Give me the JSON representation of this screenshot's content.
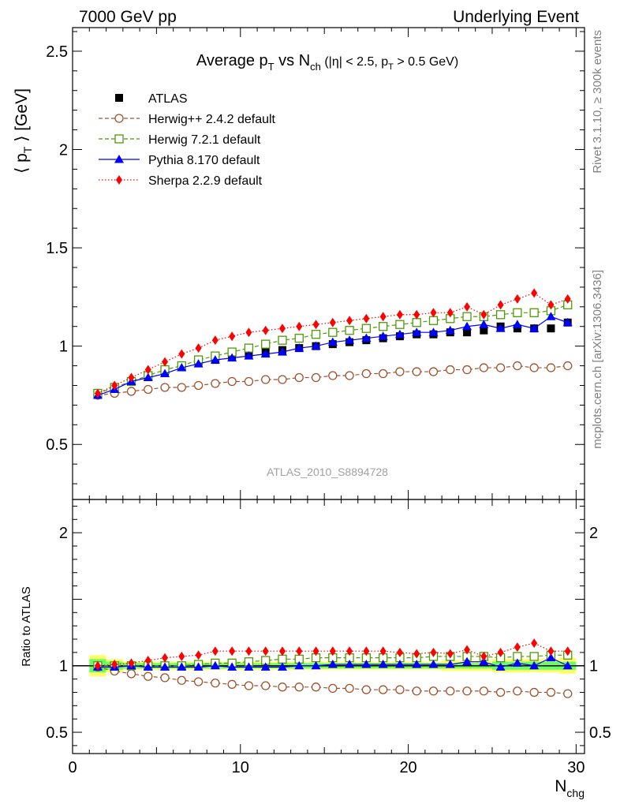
{
  "header": {
    "left": "7000 GeV pp",
    "right": "Underlying Event"
  },
  "side_labels": {
    "rivet": "Rivet 3.1.10, ≥ 300k events",
    "mcplots": "mcplots.cern.ch [arXiv:1306.3436]"
  },
  "chart_data": [
    {
      "type": "line",
      "title": "Average p_T vs N_ch (|η| < 2.5, p_T > 0.5 GeV)",
      "title_parts": {
        "a": "Average p",
        "a_sub": "T",
        "b": " vs N",
        "b_sub": "ch",
        "c": " (|η| < 2.5, p",
        "c_sub": "T",
        "d": " > 0.5 GeV)"
      },
      "watermark": "ATLAS_2010_S8894728",
      "ylabel": "⟨ p_T ⟩ [GeV]",
      "ylabel_parts": {
        "a": "⟨ p",
        "sub": "T",
        "b": " ⟩ [GeV]"
      },
      "xlim": [
        0,
        30.5
      ],
      "ylim": [
        0.22,
        2.62
      ],
      "yticks": [
        0.5,
        1,
        1.5,
        2,
        2.5
      ],
      "ytick_labels": [
        "0.5",
        "1",
        "1.5",
        "2",
        "2.5"
      ],
      "legend_position": "top-left",
      "x": [
        1.5,
        2.5,
        3.5,
        4.5,
        5.5,
        6.5,
        7.5,
        8.5,
        9.5,
        10.5,
        11.5,
        12.5,
        13.5,
        14.5,
        15.5,
        16.5,
        17.5,
        18.5,
        19.5,
        20.5,
        21.5,
        22.5,
        23.5,
        24.5,
        25.5,
        26.5,
        27.5,
        28.5,
        29.5
      ],
      "series": [
        {
          "name": "ATLAS",
          "color": "#000000",
          "marker": "square-filled",
          "line": "none",
          "values": [
            0.76,
            0.79,
            0.82,
            0.85,
            0.87,
            0.9,
            0.92,
            0.93,
            0.95,
            0.96,
            0.97,
            0.98,
            0.99,
            1.0,
            1.01,
            1.02,
            1.03,
            1.04,
            1.05,
            1.06,
            1.06,
            1.07,
            1.07,
            1.08,
            1.1,
            1.09,
            1.09,
            1.09,
            1.12
          ]
        },
        {
          "name": "Herwig++ 2.4.2 default",
          "color": "#a0522d",
          "marker": "circle-open",
          "line": "dashed",
          "values": [
            0.75,
            0.76,
            0.77,
            0.78,
            0.79,
            0.79,
            0.8,
            0.81,
            0.82,
            0.82,
            0.83,
            0.83,
            0.84,
            0.84,
            0.85,
            0.85,
            0.86,
            0.86,
            0.87,
            0.87,
            0.87,
            0.88,
            0.88,
            0.89,
            0.89,
            0.9,
            0.89,
            0.89,
            0.9
          ]
        },
        {
          "name": "Herwig 7.2.1 default",
          "color": "#4e9a06",
          "marker": "square-open",
          "line": "dashed",
          "values": [
            0.76,
            0.79,
            0.82,
            0.85,
            0.88,
            0.9,
            0.93,
            0.95,
            0.97,
            0.99,
            1.01,
            1.03,
            1.04,
            1.06,
            1.07,
            1.08,
            1.09,
            1.1,
            1.11,
            1.12,
            1.13,
            1.14,
            1.15,
            1.15,
            1.16,
            1.17,
            1.17,
            1.18,
            1.21
          ]
        },
        {
          "name": "Pythia 8.170 default",
          "color": "#0000ff",
          "marker": "triangle-filled",
          "line": "solid",
          "values": [
            0.75,
            0.78,
            0.82,
            0.84,
            0.86,
            0.89,
            0.91,
            0.93,
            0.94,
            0.95,
            0.96,
            0.97,
            0.99,
            1.0,
            1.02,
            1.03,
            1.04,
            1.05,
            1.06,
            1.07,
            1.07,
            1.08,
            1.1,
            1.11,
            1.09,
            1.11,
            1.09,
            1.15,
            1.12
          ]
        },
        {
          "name": "Sherpa 2.2.9 default",
          "color": "#ff0000",
          "marker": "diamond-filled",
          "line": "dotted",
          "values": [
            0.76,
            0.8,
            0.84,
            0.88,
            0.92,
            0.96,
            0.99,
            1.03,
            1.05,
            1.07,
            1.08,
            1.09,
            1.1,
            1.11,
            1.12,
            1.13,
            1.14,
            1.15,
            1.16,
            1.16,
            1.17,
            1.17,
            1.2,
            1.16,
            1.21,
            1.24,
            1.27,
            1.21,
            1.24
          ]
        }
      ]
    },
    {
      "type": "line",
      "ylabel": "Ratio to ATLAS",
      "xlabel": "N_chg",
      "xlabel_parts": {
        "a": "N",
        "sub": "chg"
      },
      "xlim": [
        0,
        30.5
      ],
      "ylim": [
        0.34,
        2.25
      ],
      "yticks": [
        0.5,
        1,
        2
      ],
      "ytick_labels": [
        "0.5",
        "1",
        "2"
      ],
      "xticks": [
        0,
        10,
        20,
        30
      ],
      "xtick_labels": [
        "0",
        "10",
        "20",
        "30"
      ],
      "reference_line": 1,
      "band_color": "#66ff66",
      "band_outer_color": "#ffff66",
      "x": [
        1.5,
        2.5,
        3.5,
        4.5,
        5.5,
        6.5,
        7.5,
        8.5,
        9.5,
        10.5,
        11.5,
        12.5,
        13.5,
        14.5,
        15.5,
        16.5,
        17.5,
        18.5,
        19.5,
        20.5,
        21.5,
        22.5,
        23.5,
        24.5,
        25.5,
        26.5,
        27.5,
        28.5,
        29.5
      ],
      "band_inner_halfwidth": [
        0.05,
        0.03,
        0.02,
        0.02,
        0.02,
        0.02,
        0.02,
        0.02,
        0.02,
        0.02,
        0.02,
        0.02,
        0.02,
        0.02,
        0.02,
        0.02,
        0.02,
        0.02,
        0.02,
        0.02,
        0.02,
        0.02,
        0.02,
        0.02,
        0.03,
        0.03,
        0.03,
        0.03,
        0.03
      ],
      "band_outer_halfwidth": [
        0.08,
        0.05,
        0.03,
        0.03,
        0.03,
        0.03,
        0.03,
        0.03,
        0.03,
        0.03,
        0.03,
        0.03,
        0.03,
        0.03,
        0.03,
        0.03,
        0.03,
        0.03,
        0.03,
        0.03,
        0.03,
        0.04,
        0.04,
        0.04,
        0.05,
        0.05,
        0.05,
        0.05,
        0.06
      ],
      "series": [
        {
          "name": "Herwig++ 2.4.2 default",
          "color": "#a0522d",
          "marker": "circle-open",
          "line": "dashed",
          "values": [
            0.99,
            0.96,
            0.94,
            0.92,
            0.91,
            0.89,
            0.88,
            0.87,
            0.86,
            0.85,
            0.85,
            0.84,
            0.84,
            0.84,
            0.83,
            0.83,
            0.82,
            0.82,
            0.82,
            0.81,
            0.81,
            0.81,
            0.81,
            0.81,
            0.8,
            0.81,
            0.8,
            0.8,
            0.79
          ]
        },
        {
          "name": "Herwig 7.2.1 default",
          "color": "#4e9a06",
          "marker": "square-open",
          "line": "dashed",
          "values": [
            1.0,
            1.0,
            1.0,
            1.0,
            1.0,
            1.0,
            1.01,
            1.02,
            1.02,
            1.03,
            1.04,
            1.05,
            1.05,
            1.06,
            1.06,
            1.06,
            1.06,
            1.06,
            1.06,
            1.06,
            1.07,
            1.07,
            1.07,
            1.07,
            1.06,
            1.07,
            1.07,
            1.08,
            1.08
          ]
        },
        {
          "name": "Pythia 8.170 default",
          "color": "#0000ff",
          "marker": "triangle-filled",
          "line": "solid",
          "values": [
            0.99,
            0.99,
            1.0,
            0.99,
            0.99,
            0.99,
            0.99,
            1.0,
            0.99,
            0.99,
            0.99,
            0.99,
            1.0,
            1.0,
            1.01,
            1.01,
            1.01,
            1.01,
            1.01,
            1.01,
            1.01,
            1.01,
            1.03,
            1.03,
            0.99,
            1.02,
            1.0,
            1.06,
            1.0
          ]
        },
        {
          "name": "Sherpa 2.2.9 default",
          "color": "#ff0000",
          "marker": "diamond-filled",
          "line": "dotted",
          "values": [
            1.0,
            1.01,
            1.02,
            1.04,
            1.06,
            1.07,
            1.08,
            1.11,
            1.11,
            1.11,
            1.11,
            1.11,
            1.11,
            1.11,
            1.11,
            1.11,
            1.11,
            1.11,
            1.1,
            1.09,
            1.1,
            1.09,
            1.12,
            1.07,
            1.1,
            1.14,
            1.17,
            1.11,
            1.11
          ]
        }
      ]
    }
  ]
}
